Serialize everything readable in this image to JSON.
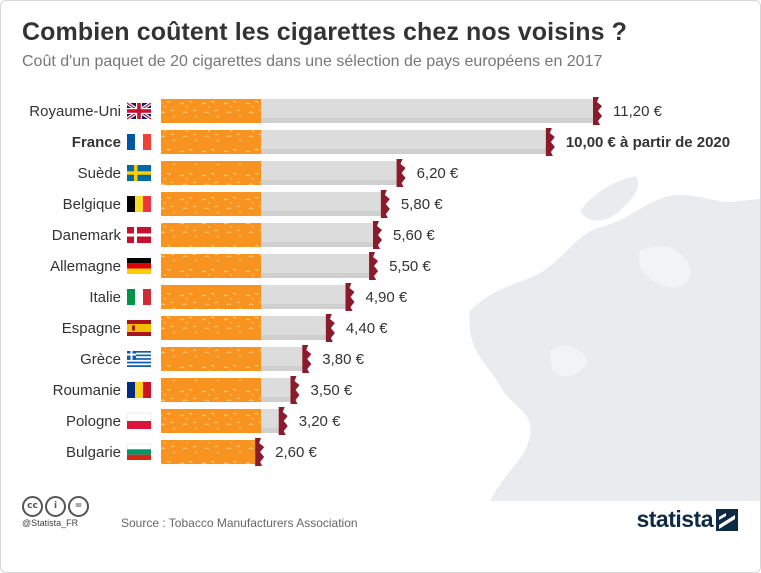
{
  "header": {
    "title": "Combien coûtent les cigarettes chez nos voisins ?",
    "subtitle": "Coût d'un paquet de 20 cigarettes dans une sélection de pays européens en 2017"
  },
  "footer": {
    "handle": "@Statista_FR",
    "source": "Source : Tobacco Manufacturers Association",
    "brand": "statista",
    "license_icons": [
      "cc",
      "by",
      "nd"
    ]
  },
  "colors": {
    "filter": "#f7931e",
    "ash": "#8b1a2b",
    "cigarette": "#dcdcdc",
    "text": "#333333"
  },
  "chart_data": {
    "type": "bar",
    "orientation": "horizontal",
    "title": "Combien coûtent les cigarettes chez nos voisins ?",
    "unit": "€",
    "categories": [
      "Royaume-Uni",
      "France",
      "Suède",
      "Belgique",
      "Danemark",
      "Allemagne",
      "Italie",
      "Espagne",
      "Grèce",
      "Roumanie",
      "Pologne",
      "Bulgarie"
    ],
    "values": [
      11.2,
      10.0,
      6.2,
      5.8,
      5.6,
      5.5,
      4.9,
      4.4,
      3.8,
      3.5,
      3.2,
      2.6
    ],
    "value_labels": [
      "11,20 €",
      "10,00 € à partir de 2020",
      "6,20 €",
      "5,80 €",
      "5,60 €",
      "5,50 €",
      "4,90 €",
      "4,40 €",
      "3,80 €",
      "3,50 €",
      "3,20 €",
      "2,60 €"
    ],
    "flags": [
      "uk-flag-icon",
      "france-flag-icon",
      "sweden-flag-icon",
      "belgium-flag-icon",
      "denmark-flag-icon",
      "germany-flag-icon",
      "italy-flag-icon",
      "spain-flag-icon",
      "greece-flag-icon",
      "romania-flag-icon",
      "poland-flag-icon",
      "bulgaria-flag-icon"
    ],
    "highlight": "France",
    "xlim": [
      0,
      11.2
    ]
  }
}
